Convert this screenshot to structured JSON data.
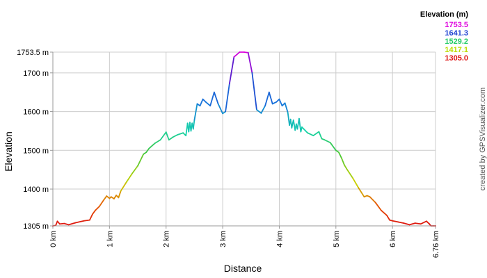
{
  "chart_data": {
    "type": "line",
    "title": "",
    "xlabel": "Distance",
    "ylabel": "Elevation",
    "x_unit": "km",
    "y_unit": "m",
    "xlim": [
      0,
      6.76
    ],
    "ylim": [
      1305,
      1753.5
    ],
    "grid": true,
    "x_ticks": [
      {
        "value": 0,
        "label": "0 km"
      },
      {
        "value": 1,
        "label": "1 km"
      },
      {
        "value": 2,
        "label": "2 km"
      },
      {
        "value": 3,
        "label": "3 km"
      },
      {
        "value": 4,
        "label": "4 km"
      },
      {
        "value": 5,
        "label": "5 km"
      },
      {
        "value": 6,
        "label": "6 km"
      },
      {
        "value": 6.76,
        "label": "6.76 km"
      }
    ],
    "y_ticks": [
      {
        "value": 1305,
        "label": "1305 m"
      },
      {
        "value": 1400,
        "label": "1400 m"
      },
      {
        "value": 1500,
        "label": "1500 m"
      },
      {
        "value": 1600,
        "label": "1600 m"
      },
      {
        "value": 1700,
        "label": "1700 m"
      },
      {
        "value": 1753.5,
        "label": "1753.5 m"
      }
    ],
    "legend": {
      "title": "Elevation (m)",
      "placement": "top-right",
      "entries": [
        {
          "label": "1753.5",
          "color": "#dd00dd"
        },
        {
          "label": "1641.3",
          "color": "#1a3fd1"
        },
        {
          "label": "1529.2",
          "color": "#22cc66"
        },
        {
          "label": "1417.1",
          "color": "#bbdd00"
        },
        {
          "label": "1305.0",
          "color": "#dd1111"
        }
      ]
    },
    "series": [
      {
        "x": [
          0,
          0.05,
          0.08,
          0.12,
          0.2,
          0.28,
          0.4,
          0.55,
          0.65,
          0.7,
          0.75,
          0.82,
          0.9,
          0.95,
          1.0,
          1.03,
          1.08,
          1.12,
          1.16,
          1.2,
          1.3,
          1.4,
          1.5,
          1.6,
          1.65,
          1.7,
          1.8,
          1.9,
          2.0,
          2.05,
          2.12,
          2.2,
          2.3,
          2.35,
          2.38,
          2.4,
          2.42,
          2.44,
          2.46,
          2.48,
          2.5,
          2.55,
          2.6,
          2.65,
          2.7,
          2.78,
          2.85,
          2.92,
          3.0,
          3.05,
          3.12,
          3.2,
          3.3,
          3.38,
          3.45,
          3.52,
          3.6,
          3.68,
          3.75,
          3.82,
          3.88,
          3.95,
          4.0,
          4.05,
          4.1,
          4.15,
          4.18,
          4.2,
          4.22,
          4.25,
          4.28,
          4.3,
          4.32,
          4.35,
          4.38,
          4.4,
          4.5,
          4.6,
          4.7,
          4.75,
          4.8,
          4.9,
          5.0,
          5.05,
          5.1,
          5.15,
          5.2,
          5.3,
          5.4,
          5.5,
          5.55,
          5.6,
          5.7,
          5.8,
          5.9,
          5.95,
          6.0,
          6.1,
          6.2,
          6.3,
          6.4,
          6.5,
          6.6,
          6.65,
          6.68,
          6.72,
          6.76
        ],
        "y": [
          1305,
          1306,
          1317,
          1310,
          1311,
          1308,
          1313,
          1318,
          1320,
          1335,
          1345,
          1355,
          1372,
          1382,
          1376,
          1380,
          1375,
          1384,
          1378,
          1395,
          1418,
          1440,
          1460,
          1490,
          1495,
          1505,
          1518,
          1527,
          1547,
          1527,
          1534,
          1540,
          1545,
          1538,
          1570,
          1548,
          1572,
          1550,
          1570,
          1555,
          1578,
          1620,
          1615,
          1632,
          1625,
          1615,
          1650,
          1620,
          1595,
          1600,
          1672,
          1741,
          1753.5,
          1753.5,
          1752,
          1700,
          1605,
          1596,
          1615,
          1650,
          1620,
          1625,
          1632,
          1615,
          1622,
          1598,
          1565,
          1580,
          1558,
          1578,
          1552,
          1568,
          1555,
          1582,
          1548,
          1560,
          1545,
          1538,
          1548,
          1530,
          1527,
          1520,
          1500,
          1495,
          1480,
          1462,
          1450,
          1428,
          1403,
          1380,
          1383,
          1380,
          1365,
          1345,
          1332,
          1320,
          1318,
          1315,
          1312,
          1308,
          1312,
          1310,
          1317,
          1310,
          1305,
          1305,
          1305
        ]
      }
    ]
  },
  "credit_text": "created by GPSVisualizer.com"
}
